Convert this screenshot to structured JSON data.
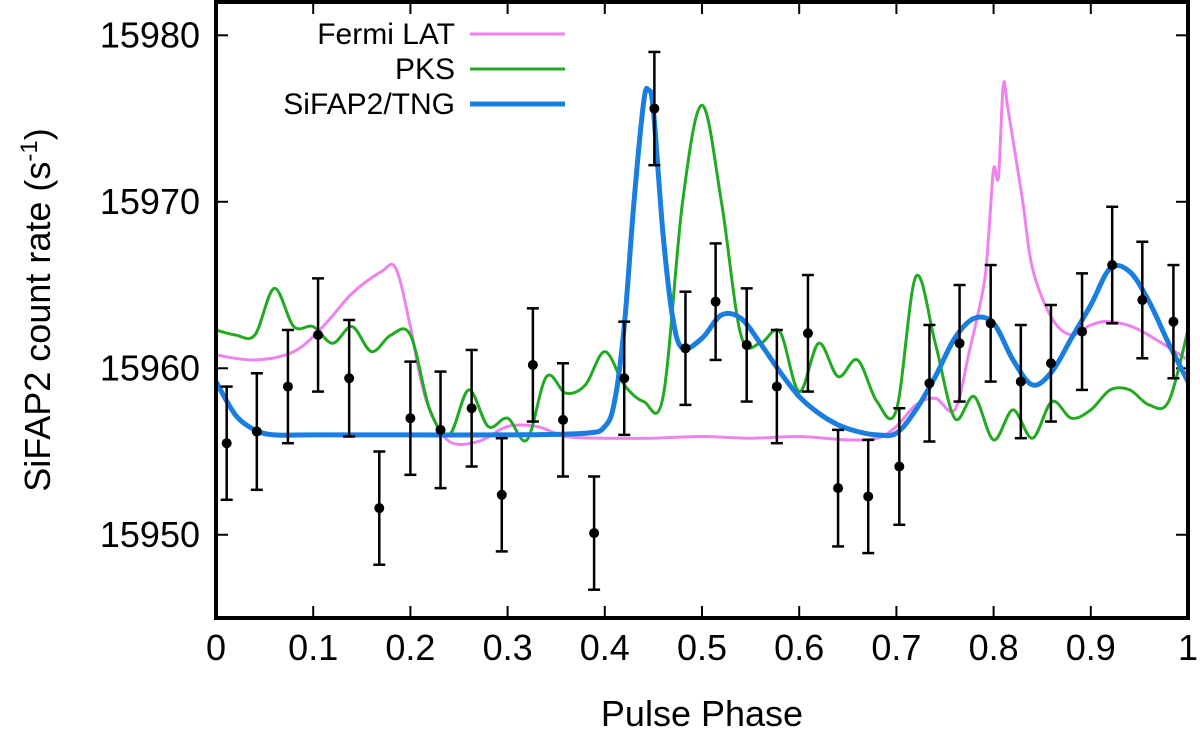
{
  "chart_data": {
    "type": "line",
    "xlabel": "Pulse Phase",
    "ylabel": "SiFAP2 count rate (s",
    "ylabel_superscript": "-1",
    "ylabel_close": ")",
    "xlim": [
      0,
      1
    ],
    "ylim": [
      15945,
      15982
    ],
    "xticks": [
      0,
      0.1,
      0.2,
      0.3,
      0.4,
      0.5,
      0.6,
      0.7,
      0.8,
      0.9,
      1
    ],
    "xtick_labels": [
      "0",
      "0.1",
      "0.2",
      "0.3",
      "0.4",
      "0.5",
      "0.6",
      "0.7",
      "0.8",
      "0.9",
      "1"
    ],
    "yticks": [
      15950,
      15960,
      15970,
      15980
    ],
    "ytick_labels": [
      "15950",
      "15960",
      "15970",
      "15980"
    ],
    "legend_position": "top-left",
    "series": [
      {
        "name": "Fermi LAT",
        "color": "#ee82ee",
        "x": [
          0,
          0.04,
          0.08,
          0.11,
          0.14,
          0.17,
          0.185,
          0.2,
          0.21,
          0.22,
          0.24,
          0.27,
          0.3,
          0.33,
          0.36,
          0.4,
          0.45,
          0.5,
          0.55,
          0.6,
          0.65,
          0.68,
          0.7,
          0.72,
          0.74,
          0.76,
          0.775,
          0.79,
          0.795,
          0.8,
          0.805,
          0.81,
          0.815,
          0.83,
          0.84,
          0.86,
          0.88,
          0.9,
          0.92,
          0.95,
          1
        ],
        "values": [
          15960.8,
          15960.5,
          15961,
          15962.5,
          15964.5,
          15965.8,
          15966,
          15962.5,
          15959.5,
          15957.5,
          15955.6,
          15955.6,
          15956.5,
          15956.5,
          15955.9,
          15955.8,
          15955.8,
          15955.9,
          15955.8,
          15955.9,
          15955.7,
          15955.8,
          15956.5,
          15957.8,
          15958.2,
          15957.5,
          15961,
          15965,
          15968,
          15972,
          15971.5,
          15977,
          15975.5,
          15970,
          15966,
          15963,
          15962,
          15962.6,
          15962.8,
          15962.3,
          15960.5
        ]
      },
      {
        "name": "PKS",
        "color": "#22aa22",
        "x": [
          0,
          0.02,
          0.04,
          0.06,
          0.08,
          0.1,
          0.12,
          0.14,
          0.16,
          0.18,
          0.2,
          0.22,
          0.24,
          0.26,
          0.28,
          0.3,
          0.32,
          0.34,
          0.36,
          0.38,
          0.4,
          0.42,
          0.44,
          0.46,
          0.48,
          0.5,
          0.52,
          0.54,
          0.56,
          0.58,
          0.6,
          0.62,
          0.64,
          0.66,
          0.68,
          0.7,
          0.72,
          0.74,
          0.76,
          0.78,
          0.8,
          0.82,
          0.84,
          0.86,
          0.88,
          0.9,
          0.92,
          0.94,
          0.96,
          0.98,
          1
        ],
        "values": [
          15962.3,
          15962,
          15962,
          15964.8,
          15962.5,
          15962.5,
          15961.5,
          15962.5,
          15961,
          15962,
          15962,
          15957.5,
          15956,
          15958.7,
          15956.5,
          15957,
          15955.7,
          15959.5,
          15958.5,
          15959,
          15961,
          15959,
          15958,
          15958.3,
          15970,
          15975.8,
          15970,
          15962,
          15961.5,
          15962.2,
          15958.6,
          15961.5,
          15959.5,
          15960.5,
          15958,
          15957.5,
          15965.5,
          15961.5,
          15957,
          15958.3,
          15955.7,
          15957.5,
          15955.8,
          15958,
          15957,
          15957.5,
          15958.7,
          15958.7,
          15957.8,
          15958,
          15962.3
        ]
      },
      {
        "name": "SiFAP2/TNG",
        "color": "#1a7ee0",
        "x": [
          0,
          0.02,
          0.04,
          0.06,
          0.1,
          0.2,
          0.3,
          0.38,
          0.4,
          0.41,
          0.42,
          0.43,
          0.44,
          0.445,
          0.45,
          0.46,
          0.47,
          0.48,
          0.5,
          0.52,
          0.54,
          0.56,
          0.58,
          0.6,
          0.62,
          0.64,
          0.66,
          0.68,
          0.7,
          0.72,
          0.74,
          0.76,
          0.78,
          0.8,
          0.82,
          0.84,
          0.86,
          0.88,
          0.9,
          0.92,
          0.94,
          0.96,
          0.98,
          1
        ],
        "values": [
          15959.2,
          15957.2,
          15956.3,
          15956,
          15956,
          15956,
          15956,
          15956.1,
          15956.5,
          15958,
          15962.5,
          15970,
          15976,
          15976.7,
          15975.5,
          15968,
          15963,
          15961.2,
          15961.8,
          15963.2,
          15963,
          15961.5,
          15959.8,
          15958.3,
          15957.3,
          15956.6,
          15956.2,
          15956,
          15956.1,
          15957.5,
          15959.5,
          15961.8,
          15963,
          15962.7,
          15960.5,
          15959,
          15959.8,
          15961.8,
          15963.8,
          15966,
          15965.8,
          15964,
          15961.5,
          15959.2
        ]
      }
    ],
    "data_points": {
      "name": "SiFAP2 data",
      "color": "#000000",
      "x": [
        0.011,
        0.042,
        0.074,
        0.105,
        0.137,
        0.168,
        0.2,
        0.231,
        0.263,
        0.294,
        0.326,
        0.357,
        0.389,
        0.42,
        0.451,
        0.483,
        0.514,
        0.546,
        0.577,
        0.609,
        0.64,
        0.671,
        0.703,
        0.734,
        0.765,
        0.797,
        0.828,
        0.859,
        0.891,
        0.922,
        0.953,
        0.985
      ],
      "y": [
        15955.5,
        15956.2,
        15958.9,
        15962,
        15959.4,
        15951.6,
        15957,
        15956.3,
        15957.6,
        15952.4,
        15960.2,
        15956.9,
        15950.1,
        15959.4,
        15975.6,
        15961.2,
        15964,
        15961.4,
        15958.9,
        15962.1,
        15952.8,
        15952.3,
        15954.1,
        15959.1,
        15961.5,
        15962.7,
        15959.2,
        15960.3,
        15962.2,
        15966.2,
        15964.1,
        15962.8
      ],
      "err": [
        3.4,
        3.5,
        3.4,
        3.4,
        3.5,
        3.4,
        3.4,
        3.5,
        3.5,
        3.4,
        3.4,
        3.4,
        3.4,
        3.4,
        3.4,
        3.4,
        3.5,
        3.4,
        3.4,
        3.5,
        3.5,
        3.4,
        3.5,
        3.5,
        3.5,
        3.5,
        3.4,
        3.5,
        3.5,
        3.5,
        3.5,
        3.4
      ]
    }
  }
}
